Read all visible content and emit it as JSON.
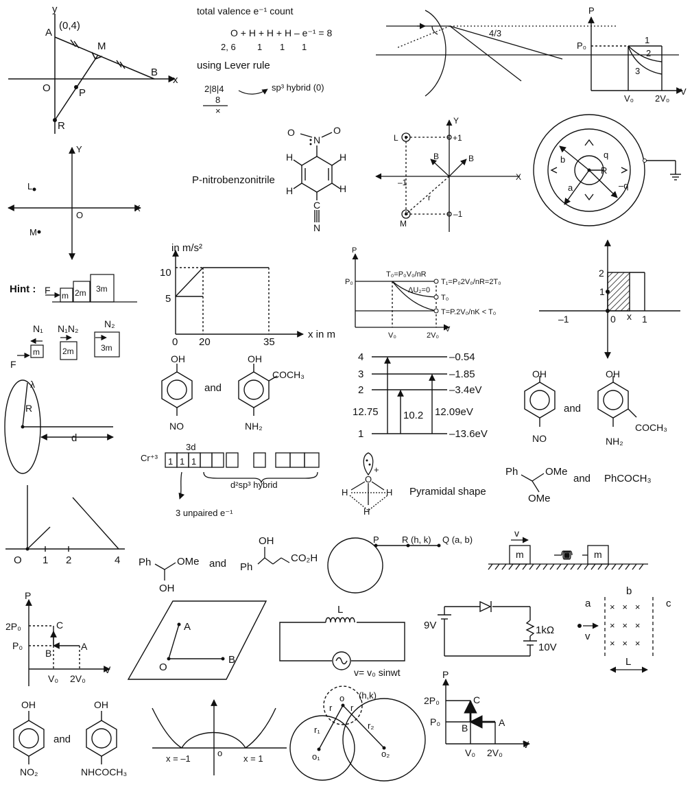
{
  "texts": {
    "t01": "y",
    "t02": "(0,4)",
    "t03": "A",
    "t04": "M",
    "t05": "B",
    "t06": "x",
    "t07": "O",
    "t08": "P",
    "t09": "R",
    "t10": "total valence e⁻¹ count",
    "t11": "O + H + H + H – e⁻¹ = 8",
    "t12": "2, 6",
    "t13": "1",
    "t14": "1",
    "t15": "1",
    "t16": "using Lever rule",
    "t17": "2|8|4",
    "t18": "sp³ hybrid (0)",
    "t19": "8",
    "t20": "×",
    "t21": "4/3",
    "t22": "P",
    "t23": "P₀",
    "t24": "1",
    "t25": "2",
    "t26": "3",
    "t27": "V₀",
    "t28": "2V₀",
    "t29": "V",
    "t30": "Y",
    "t31": "L",
    "t32": "O",
    "t33": "X",
    "t34": "M",
    "t35": "O",
    "t36": "N",
    "t37": "O",
    "t38": "H",
    "t39": "H",
    "t40": "H",
    "t41": "H",
    "t42": "C",
    "t43": "N",
    "t44": "P-nitrobenzonitrile",
    "t45": "Y",
    "t46": "L",
    "t47": "+1",
    "t48": "B",
    "t49": "B",
    "t50": "X",
    "t51": "–1",
    "t52": "r",
    "t53": "M",
    "t54": "–1",
    "t55": "b",
    "t56": "q",
    "t57": "R",
    "t58": "a",
    "t59": "–q",
    "t60": "in m/s²",
    "t61": "10",
    "t62": "5",
    "t63": "0",
    "t64": "20",
    "t65": "35",
    "t66": "x in m",
    "t67": "P",
    "t68": "P₀",
    "t69": "T₀=P₀V₀/nR",
    "t70": "T₁=P₀2V₀/nR=2T₀",
    "t71": "ΔU₂=0",
    "t72": "T₀",
    "t73": "T=P.2V₀/nK < T₀",
    "t74": "V₀",
    "t75": "2V₀",
    "t76": "V",
    "t77": "2",
    "t78": "1",
    "t79": "–1",
    "t80": "0",
    "t81": "x",
    "t82": "1",
    "t83": "Hint :",
    "t84": "F",
    "t85": "m",
    "t86": "2m",
    "t87": "3m",
    "t88": "N₁",
    "t89": "N₁N₂",
    "t90": "N₂",
    "t91": "F",
    "t92": "m",
    "t93": "2m",
    "t94": "3m",
    "t95": "λ",
    "t96": "R",
    "t97": "d",
    "t98": "OH",
    "t99": "NO",
    "t100": "and",
    "t101": "OH",
    "t102": "COCH₃",
    "t103": "NH₂",
    "t104": "4",
    "t105": "3",
    "t106": "2",
    "t107": "1",
    "t108": "–0.54",
    "t109": "–1.85",
    "t110": "–3.4eV",
    "t111": "–13.6eV",
    "t112": "12.75",
    "t113": "10.2",
    "t114": "12.09eV",
    "t115": "OH",
    "t116": "NO",
    "t117": "and",
    "t118": "OH",
    "t119": "COCH₃",
    "t120": "NH₂",
    "t121": "Cr⁺³",
    "t122": "3d",
    "t123": "1",
    "t124": "1",
    "t125": "1",
    "t126": "d²sp³ hybrid",
    "t127": "3 unpaired e⁻¹",
    "t128": "O",
    "t129": "+",
    "t130": "H",
    "t131": "H",
    "t132": "H",
    "t133": "Pyramidal shape",
    "t134": "Ph",
    "t135": "OMe",
    "t136": "OMe",
    "t137": "and",
    "t138": "PhCOCH₃",
    "t139": "O",
    "t140": "1",
    "t141": "2",
    "t142": "4",
    "t143": "Ph",
    "t144": "OMe",
    "t145": "OH",
    "t146": "and",
    "t147": "OH",
    "t148": "Ph",
    "t149": "CO₂H",
    "t150": "P",
    "t151": "R (h, k)",
    "t152": "Q (a, b)",
    "t153": "v",
    "t154": "m",
    "t155": "m",
    "t156": "P",
    "t157": "2P₀",
    "t158": "P₀",
    "t159": "C",
    "t160": "B",
    "t161": "A",
    "t162": "V₀",
    "t163": "2V₀",
    "t164": "V",
    "t165": "A",
    "t166": "O",
    "t167": "B",
    "t168": "L",
    "t169": "v= v₀ sinwt",
    "t170": "9V",
    "t171": "1kΩ",
    "t172": "10V",
    "t173": "a",
    "t174": "b",
    "t175": "c",
    "t176": "v",
    "t177": "L",
    "t178": "OH",
    "t179": "NO₂",
    "t180": "and",
    "t181": "OH",
    "t182": "NHCOCH₃",
    "t183": "x = –1",
    "t184": "o",
    "t185": "x = 1",
    "t186": "(h,k)",
    "t187": "r",
    "t188": "o",
    "t189": "r",
    "t190": "r₁",
    "t191": "r₂",
    "t192": "o₁",
    "t193": "o₂",
    "t194": "P",
    "t195": "2P₀",
    "t196": "P₀",
    "t197": "C",
    "t198": "B",
    "t199": "A",
    "t200": "V₀",
    "t201": "2V₀",
    "t202": "V"
  }
}
